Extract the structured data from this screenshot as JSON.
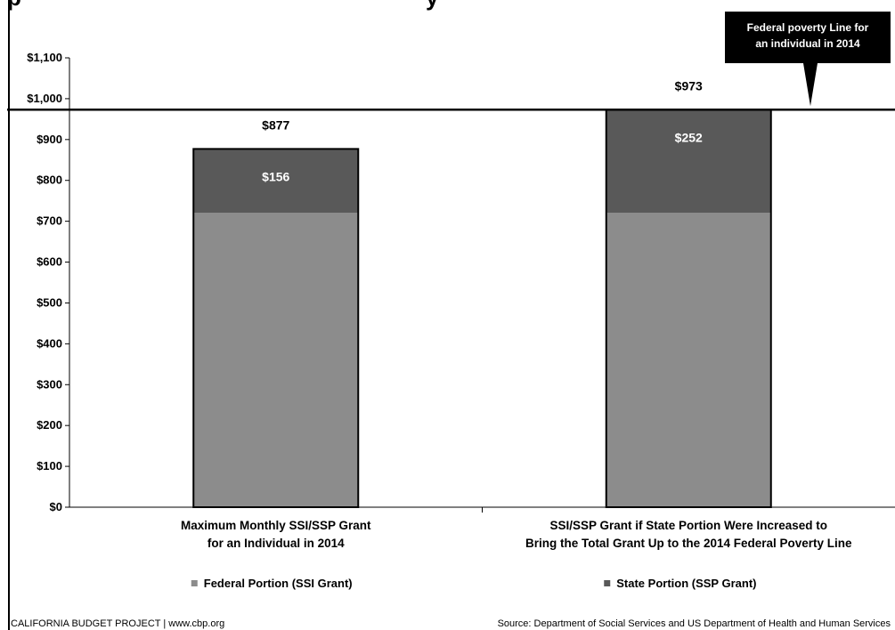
{
  "chart_data": {
    "type": "bar",
    "stacked": true,
    "title_fragments": [
      "p",
      "y"
    ],
    "categories": [
      [
        "Maximum Monthly SSI/SSP Grant",
        "for an Individual in 2014"
      ],
      [
        "SSI/SSP Grant if State Portion Were Increased to",
        "Bring the Total Grant Up to the 2014 Federal Poverty Line"
      ]
    ],
    "series": [
      {
        "name": "Federal Portion (SSI Grant)",
        "values": [
          721,
          721
        ],
        "color": "#8c8c8c",
        "labels": [
          "",
          ""
        ]
      },
      {
        "name": "State Portion (SSP Grant)",
        "values": [
          156,
          252
        ],
        "color": "#595959",
        "labels": [
          "$156",
          "$252"
        ]
      }
    ],
    "totals": [
      "$877",
      "$973"
    ],
    "ylim": [
      0,
      1100
    ],
    "y_ticks": [
      0,
      100,
      200,
      300,
      400,
      500,
      600,
      700,
      800,
      900,
      1000,
      1100
    ],
    "y_tick_labels": [
      "$0",
      "$100",
      "$200",
      "$300",
      "$400",
      "$500",
      "$600",
      "$700",
      "$800",
      "$900",
      "$1,000",
      "$1,100"
    ],
    "reference_line": {
      "value": 973,
      "label_lines": [
        "Federal poverty Line for",
        "an individual in 2014"
      ]
    },
    "legend_placement": "bottom",
    "grid": false
  },
  "footer": {
    "left": "CALIFORNIA BUDGET PROJECT  |  www.cbp.org",
    "right": "Source: Department of Social Services and US Department of Health and Human Services"
  }
}
